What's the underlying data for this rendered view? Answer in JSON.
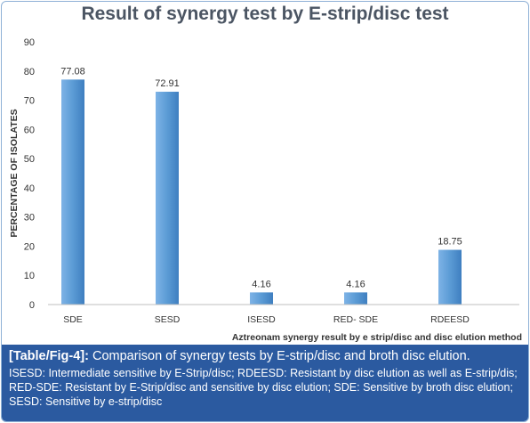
{
  "chart_data": {
    "type": "bar",
    "title": "Result of synergy test by E-strip/disc test",
    "xlabel": "Aztreonam synergy result by e strip/disc and disc elution method",
    "ylabel": "PERCENTAGE OF ISOLATES",
    "categories": [
      "SDE",
      "SESD",
      "ISESD",
      "RED- SDE",
      "RDEESD"
    ],
    "values": [
      77.08,
      72.91,
      4.16,
      4.16,
      18.75
    ],
    "value_labels": [
      "77.08",
      "72.91",
      "4.16",
      "4.16",
      "18.75"
    ],
    "ylim": [
      0,
      90
    ],
    "yticks": [
      "0",
      "10",
      "20",
      "30",
      "40",
      "50",
      "60",
      "70",
      "80",
      "90"
    ],
    "grid": false,
    "legend": "none",
    "bar_color": "#5b9bd5"
  },
  "caption": {
    "label": "[Table/Fig-4]:",
    "text": " Comparison of synergy tests by E-strip/disc and broth disc elution.",
    "note": "ISESD: Intermediate sensitive by E-Strip/disc; RDEESD: Resistant by disc elution as well as E-strip/dis; RED-SDE: Resistant by E-Strip/disc and sensitive by disc elution; SDE: Sensitive by broth disc elution; SESD: Sensitive by e-strip/disc"
  }
}
